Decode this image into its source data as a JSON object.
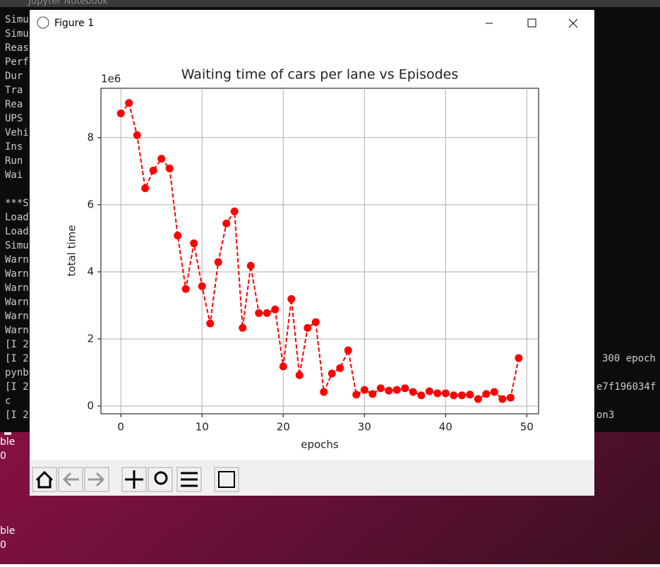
{
  "taskbar": {
    "title": "Jupyter Notebook"
  },
  "terminal": {
    "left_block1": [
      "Simu",
      "Simu",
      "Reas",
      "Perf",
      " Dur",
      " Tra",
      " Rea",
      " UPS",
      "Vehi",
      " Ins",
      " Run",
      " Wai"
    ],
    "left_block2": [
      "***S",
      "Load",
      "Load",
      "Simu",
      "Warn",
      "Warn",
      "Warn",
      "Warn",
      "Warn",
      "Warn",
      "[I 2",
      "[I 2",
      "pynb",
      "[I 2",
      "c",
      "[I 2"
    ],
    "right": [
      "300 epoch",
      "e7f196034f",
      "on3"
    ]
  },
  "desktop": {
    "labels": [
      "ble",
      "0",
      "ble",
      "0"
    ]
  },
  "window": {
    "title": "Figure 1"
  },
  "chart_data": {
    "type": "line",
    "title": "Waiting time of cars per lane vs Episodes",
    "x_label": "epochs",
    "y_label": "total time",
    "y_offset_label": "1e6",
    "x": [
      0,
      1,
      2,
      3,
      4,
      5,
      6,
      7,
      8,
      9,
      10,
      11,
      12,
      13,
      14,
      15,
      16,
      17,
      18,
      19,
      20,
      21,
      22,
      23,
      24,
      25,
      26,
      27,
      28,
      29,
      30,
      31,
      32,
      33,
      34,
      35,
      36,
      37,
      38,
      39,
      40,
      41,
      42,
      43,
      44,
      45,
      46,
      47,
      48,
      49
    ],
    "values": [
      8.72,
      9.03,
      8.07,
      6.49,
      7.02,
      7.37,
      7.08,
      5.08,
      3.49,
      4.85,
      3.57,
      2.46,
      4.29,
      5.44,
      5.8,
      2.33,
      4.18,
      2.77,
      2.77,
      2.88,
      1.18,
      3.19,
      0.92,
      2.33,
      2.5,
      0.42,
      0.97,
      1.13,
      1.66,
      0.34,
      0.48,
      0.36,
      0.53,
      0.46,
      0.48,
      0.53,
      0.42,
      0.32,
      0.44,
      0.38,
      0.38,
      0.32,
      0.32,
      0.34,
      0.21,
      0.36,
      0.42,
      0.21,
      0.25,
      1.43
    ],
    "color": "#ff0000",
    "line_style": "dashed",
    "marker": "circle",
    "xlim": [
      -2.45,
      51.45
    ],
    "xticks": [
      0,
      10,
      20,
      30,
      40,
      50
    ],
    "ylim": [
      -0.23,
      9.47
    ],
    "yticks": [
      0,
      2,
      4,
      6,
      8
    ],
    "grid": true
  }
}
